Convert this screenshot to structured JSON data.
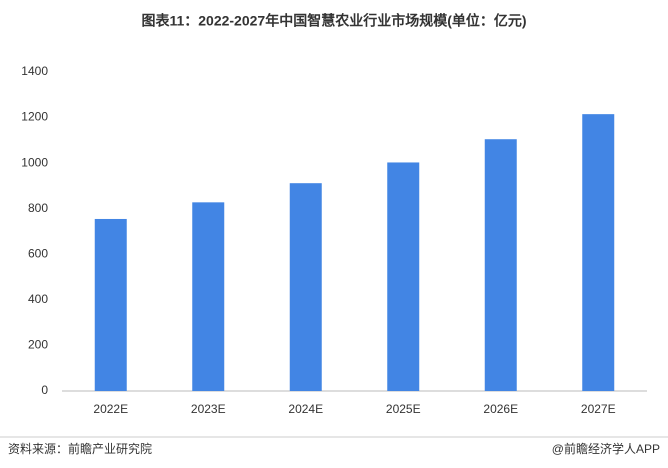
{
  "chart_data": {
    "type": "bar",
    "title": "图表11：2022-2027年中国智慧农业行业市场规模(单位：亿元)",
    "categories": [
      "2022E",
      "2023E",
      "2024E",
      "2025E",
      "2026E",
      "2027E"
    ],
    "values": [
      755,
      828,
      912,
      1003,
      1105,
      1215
    ],
    "color": "#4285e4",
    "ylim": [
      0,
      1400
    ],
    "yticks": [
      0,
      200,
      400,
      600,
      800,
      1000,
      1200,
      1400
    ],
    "grid": false,
    "source": "资料来源：前瞻产业研究院",
    "credit": "@前瞻经济学人APP"
  }
}
